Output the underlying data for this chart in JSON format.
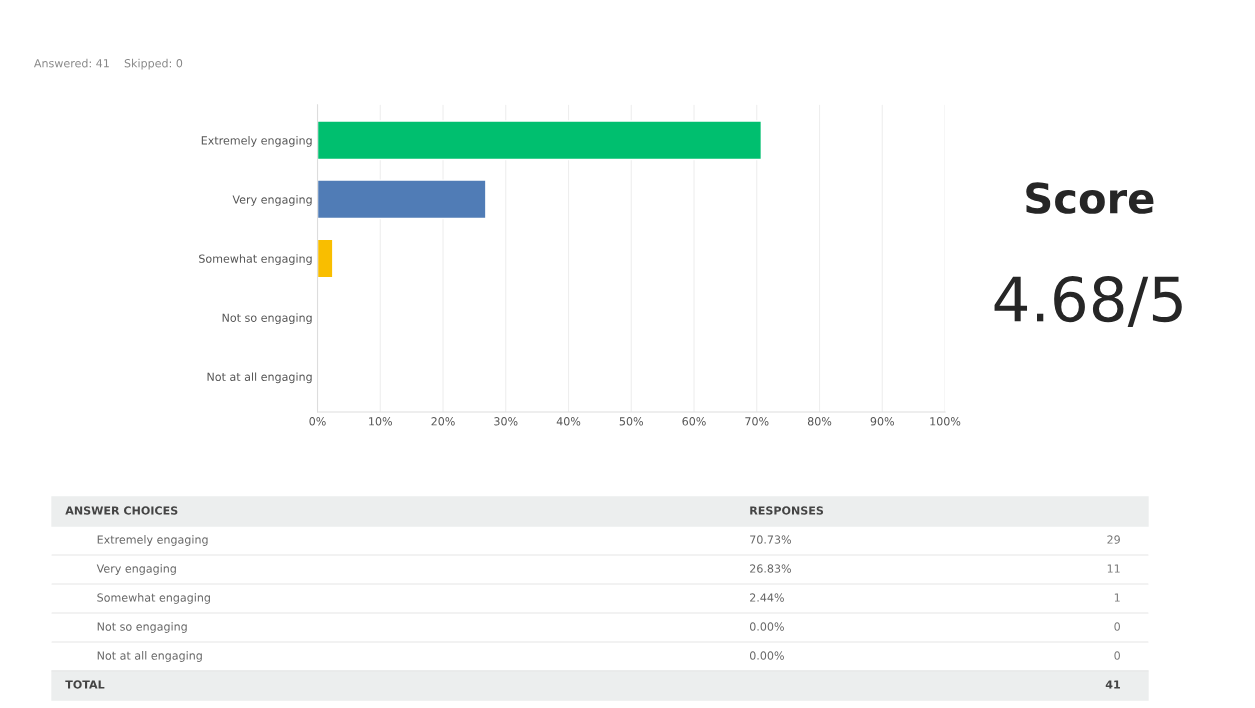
{
  "chart_data": {
    "type": "bar",
    "orientation": "horizontal",
    "subtitle": "Answered: 41    Skipped: 0",
    "categories": [
      "Extremely engaging",
      "Very engaging",
      "Somewhat engaging",
      "Not so engaging",
      "Not at all engaging"
    ],
    "values": [
      70.73,
      26.83,
      2.44,
      0,
      0
    ],
    "colors": [
      "#00bf6f",
      "#507cb6",
      "#f9be00",
      null,
      null
    ],
    "xlim": [
      0,
      100
    ],
    "xticks": [
      {
        "value": 0,
        "label": "0%"
      },
      {
        "value": 10,
        "label": "10%"
      },
      {
        "value": 20,
        "label": "20%"
      },
      {
        "value": 30,
        "label": "30%"
      },
      {
        "value": 40,
        "label": "40%"
      },
      {
        "value": 50,
        "label": "50%"
      },
      {
        "value": 60,
        "label": "60%"
      },
      {
        "value": 70,
        "label": "70%"
      },
      {
        "value": 80,
        "label": "80%"
      },
      {
        "value": 90,
        "label": "90%"
      },
      {
        "value": 100,
        "label": "100%"
      }
    ],
    "grid": "x",
    "annotations": [
      "Score",
      "4.68/5",
      "ANSWER CHOICES",
      "RESPONSES",
      "TOTAL",
      "29",
      "11",
      "1",
      "0",
      "0",
      "41",
      "70.73%",
      "26.83%",
      "2.44%",
      "0.00%",
      "0.00%"
    ]
  }
}
